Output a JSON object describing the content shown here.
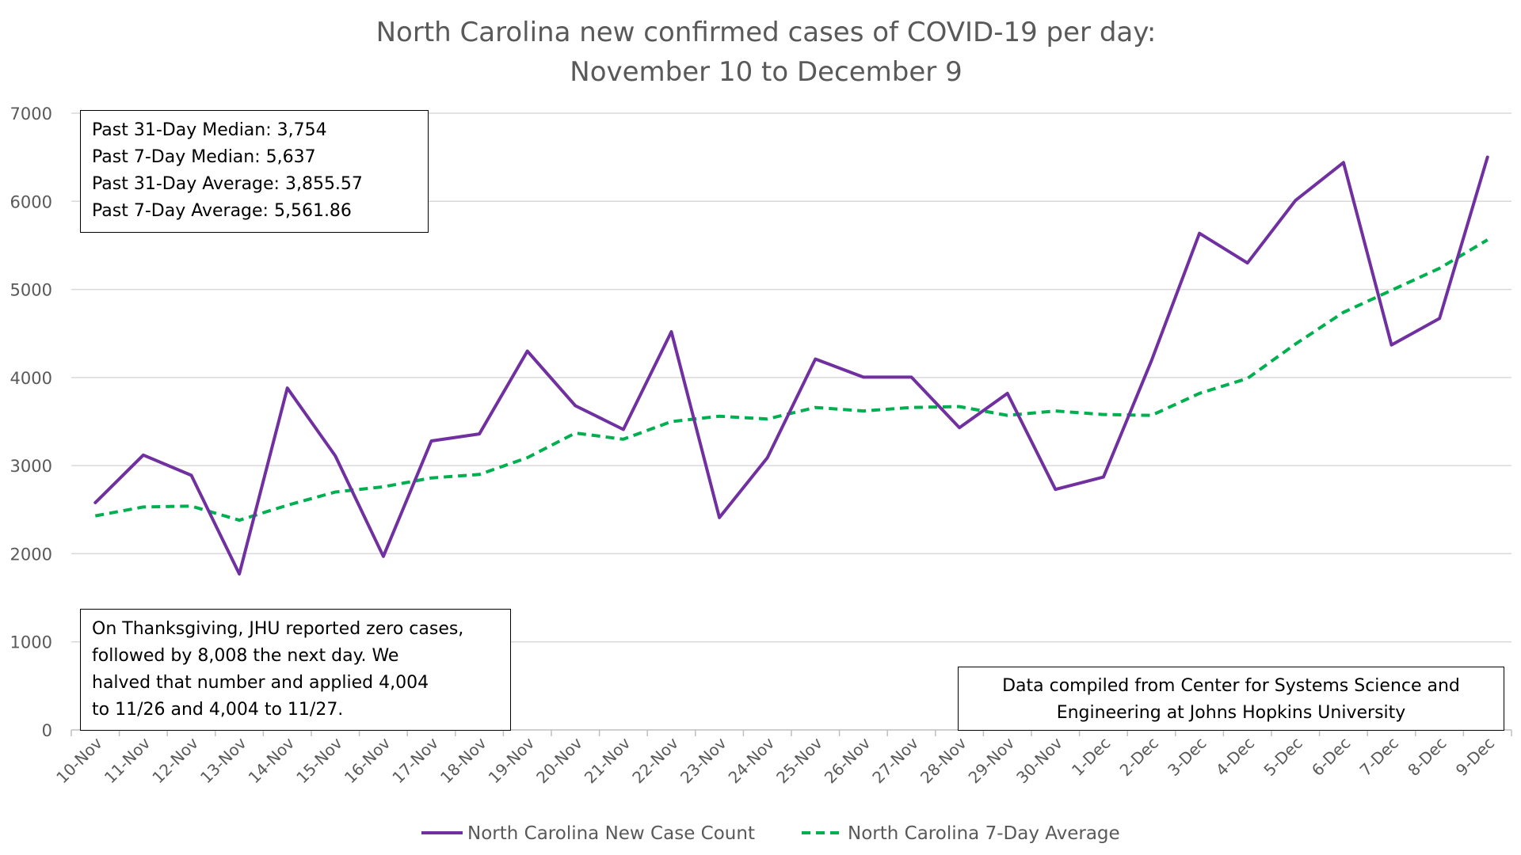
{
  "colors": {
    "new_cases": "#7030A0",
    "avg": "#00B050",
    "grid": "#D9D9D9",
    "axis_text": "#595959"
  },
  "chart_data": {
    "type": "line",
    "title": [
      "North Carolina new confirmed cases of COVID-19 per day:",
      "November 10 to December 9"
    ],
    "xlabel": "",
    "ylabel": "",
    "ylim": [
      0,
      7000
    ],
    "yticks": [
      0,
      1000,
      2000,
      3000,
      4000,
      5000,
      6000,
      7000
    ],
    "grid": true,
    "legend_position": "bottom",
    "categories": [
      "10-Nov",
      "11-Nov",
      "12-Nov",
      "13-Nov",
      "14-Nov",
      "15-Nov",
      "16-Nov",
      "17-Nov",
      "18-Nov",
      "19-Nov",
      "20-Nov",
      "21-Nov",
      "22-Nov",
      "23-Nov",
      "24-Nov",
      "25-Nov",
      "26-Nov",
      "27-Nov",
      "28-Nov",
      "29-Nov",
      "30-Nov",
      "1-Dec",
      "2-Dec",
      "3-Dec",
      "4-Dec",
      "5-Dec",
      "6-Dec",
      "7-Dec",
      "8-Dec",
      "9-Dec"
    ],
    "series": [
      {
        "name": "North Carolina New Case Count",
        "style": "solid",
        "values": [
          2580,
          3120,
          2890,
          1770,
          3880,
          3110,
          1970,
          3280,
          3360,
          4300,
          3680,
          3410,
          4520,
          2410,
          3090,
          4210,
          4004,
          4004,
          3430,
          3820,
          2730,
          2870,
          4190,
          5637,
          5300,
          6010,
          6440,
          4370,
          4670,
          6500
        ]
      },
      {
        "name": "North Carolina 7-Day Average",
        "style": "dashed",
        "values": [
          2430,
          2530,
          2540,
          2380,
          2550,
          2700,
          2760,
          2860,
          2900,
          3090,
          3370,
          3300,
          3500,
          3560,
          3530,
          3660,
          3620,
          3660,
          3670,
          3570,
          3620,
          3580,
          3570,
          3820,
          3990,
          4380,
          4740,
          4990,
          5240,
          5562
        ]
      }
    ],
    "annotations": {
      "stats": [
        "Past 31-Day Median: 3,754",
        "Past 7-Day Median: 5,637",
        "Past 31-Day Average: 3,855.57",
        "Past 7-Day Average: 5,561.86"
      ],
      "thanksgiving": [
        "On Thanksgiving, JHU reported zero cases,",
        "followed by 8,008 the next day. We",
        "halved that number and applied 4,004",
        "to 11/26 and 4,004 to 11/27."
      ],
      "source": [
        "Data compiled from Center for Systems Science and",
        "Engineering at Johns Hopkins University"
      ]
    }
  }
}
